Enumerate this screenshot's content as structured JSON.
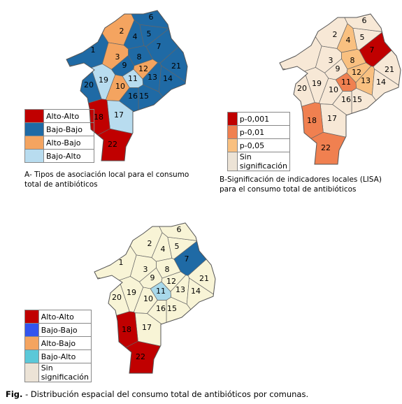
{
  "maps": [
    {
      "caption": "A- Tipos de asociación local para el consumo total de antibióticos",
      "districts": [
        {
          "label": "1",
          "color": "#1f6aa5"
        },
        {
          "label": "2",
          "color": "#f4a460"
        },
        {
          "label": "3",
          "color": "#f4a460"
        },
        {
          "label": "4",
          "color": "#1f6aa5"
        },
        {
          "label": "5",
          "color": "#1f6aa5"
        },
        {
          "label": "6",
          "color": "#1f6aa5"
        },
        {
          "label": "7",
          "color": "#1f6aa5"
        },
        {
          "label": "8",
          "color": "#1f6aa5"
        },
        {
          "label": "9",
          "color": "#1f6aa5"
        },
        {
          "label": "10",
          "color": "#f4a460"
        },
        {
          "label": "11",
          "color": "#b8dcef"
        },
        {
          "label": "12",
          "color": "#f4a460"
        },
        {
          "label": "13",
          "color": "#1f6aa5"
        },
        {
          "label": "14",
          "color": "#1f6aa5"
        },
        {
          "label": "15",
          "color": "#1f6aa5"
        },
        {
          "label": "16",
          "color": "#1f6aa5"
        },
        {
          "label": "17",
          "color": "#b8dcef"
        },
        {
          "label": "18",
          "color": "#c00000"
        },
        {
          "label": "19",
          "color": "#b8dcef"
        },
        {
          "label": "20",
          "color": "#1f6aa5"
        },
        {
          "label": "21",
          "color": "#1f6aa5"
        },
        {
          "label": "22",
          "color": "#c00000"
        }
      ],
      "legend": [
        {
          "label": "Alto-Alto",
          "color": "#c00000"
        },
        {
          "label": "Bajo-Bajo",
          "color": "#1f6aa5"
        },
        {
          "label": "Alto-Bajo",
          "color": "#f4a460"
        },
        {
          "label": "Bajo-Alto",
          "color": "#b8dcef"
        }
      ]
    },
    {
      "caption": "B-Significación de indicadores locales (LISA) para el consumo total de antibióticos",
      "districts": [
        {
          "label": null,
          "color": "#f7e8d6"
        },
        {
          "label": "2",
          "color": "#f7e8d6"
        },
        {
          "label": "3",
          "color": "#f7e8d6"
        },
        {
          "label": "4",
          "color": "#f9c080"
        },
        {
          "label": "5",
          "color": "#f7e8d6"
        },
        {
          "label": "6",
          "color": "#f7e8d6"
        },
        {
          "label": "7",
          "color": "#c00000"
        },
        {
          "label": "8",
          "color": "#f9c080"
        },
        {
          "label": "9",
          "color": "#f7e8d6"
        },
        {
          "label": "10",
          "color": "#f7e8d6"
        },
        {
          "label": "11",
          "color": "#f08050"
        },
        {
          "label": "12",
          "color": "#f9c080"
        },
        {
          "label": "13",
          "color": "#f9c080"
        },
        {
          "label": "14",
          "color": "#f7e8d6"
        },
        {
          "label": "15",
          "color": "#f7e8d6"
        },
        {
          "label": "16",
          "color": "#f7e8d6"
        },
        {
          "label": "17",
          "color": "#f7e8d6"
        },
        {
          "label": "18",
          "color": "#f08050"
        },
        {
          "label": "19",
          "color": "#f7e8d6"
        },
        {
          "label": "20",
          "color": "#f7e8d6"
        },
        {
          "label": "21",
          "color": "#f7e8d6"
        },
        {
          "label": "22",
          "color": "#f08050"
        }
      ],
      "legend": [
        {
          "label": "p-0,001",
          "color": "#c00000"
        },
        {
          "label": "p-0,01",
          "color": "#f08050"
        },
        {
          "label": "p-0,05",
          "color": "#f9c080"
        },
        {
          "label": "Sin significación",
          "color": "#ece3d6"
        }
      ]
    },
    {
      "caption": null,
      "districts": [
        {
          "label": "1",
          "color": "#f8f4d6"
        },
        {
          "label": "2",
          "color": "#f8f4d6"
        },
        {
          "label": "3",
          "color": "#f8f4d6"
        },
        {
          "label": "4",
          "color": "#f8f4d6"
        },
        {
          "label": "5",
          "color": "#f8f4d6"
        },
        {
          "label": "6",
          "color": "#f8f4d6"
        },
        {
          "label": "7",
          "color": "#1f6aa5"
        },
        {
          "label": "8",
          "color": "#f8f4d6"
        },
        {
          "label": "9",
          "color": "#f8f4d6"
        },
        {
          "label": "10",
          "color": "#f8f4d6"
        },
        {
          "label": "11",
          "color": "#a8d8ea"
        },
        {
          "label": "12",
          "color": "#f8f4d6"
        },
        {
          "label": "13",
          "color": "#f8f4d6"
        },
        {
          "label": "14",
          "color": "#f8f4d6"
        },
        {
          "label": "15",
          "color": "#f8f4d6"
        },
        {
          "label": "16",
          "color": "#f8f4d6"
        },
        {
          "label": "17",
          "color": "#f8f4d6"
        },
        {
          "label": "18",
          "color": "#c00000"
        },
        {
          "label": "19",
          "color": "#f8f4d6"
        },
        {
          "label": "20",
          "color": "#f8f4d6"
        },
        {
          "label": "21",
          "color": "#f8f4d6"
        },
        {
          "label": "22",
          "color": "#c00000"
        }
      ],
      "legend": [
        {
          "label": "Alto-Alto",
          "color": "#c00000"
        },
        {
          "label": "Bajo-Bajo",
          "color": "#3355ee"
        },
        {
          "label": "Alto-Bajo",
          "color": "#f4a460"
        },
        {
          "label": "Bajo-Alto",
          "color": "#5bc8d8"
        },
        {
          "label": "Sin significación",
          "color": "#ece3d6"
        }
      ]
    }
  ],
  "footer": {
    "label": "Fig.",
    "text": "- Distribución espacial del consumo total de antibióticos por comunas."
  }
}
